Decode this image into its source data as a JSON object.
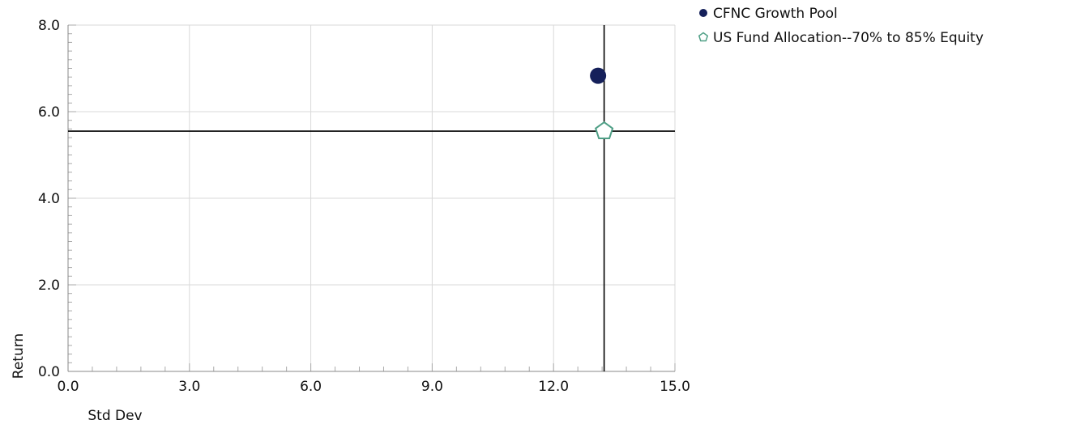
{
  "chart_data": {
    "type": "scatter",
    "xlabel": "Std Dev",
    "ylabel": "Return",
    "xlim": [
      0,
      15
    ],
    "ylim": [
      0,
      8
    ],
    "x_ticks": [
      0,
      3,
      6,
      9,
      12,
      15
    ],
    "y_ticks": [
      0,
      2,
      4,
      6,
      8
    ],
    "x_tick_labels": [
      "0.0",
      "3.0",
      "6.0",
      "9.0",
      "12.0",
      "15.0"
    ],
    "y_tick_labels": [
      "0.0",
      "2.0",
      "4.0",
      "6.0",
      "8.0"
    ],
    "grid": true,
    "legend_position": "top-right",
    "crosshair": {
      "x": 13.25,
      "y": 5.55
    },
    "series": [
      {
        "name": "CFNC Growth Pool",
        "marker": "circle",
        "color": "#15205a",
        "filled": true,
        "x": [
          13.1
        ],
        "y": [
          6.83
        ]
      },
      {
        "name": "US Fund Allocation--70% to 85% Equity",
        "marker": "pentagon",
        "color": "#4f9f86",
        "filled": false,
        "x": [
          13.25
        ],
        "y": [
          5.55
        ]
      }
    ]
  }
}
